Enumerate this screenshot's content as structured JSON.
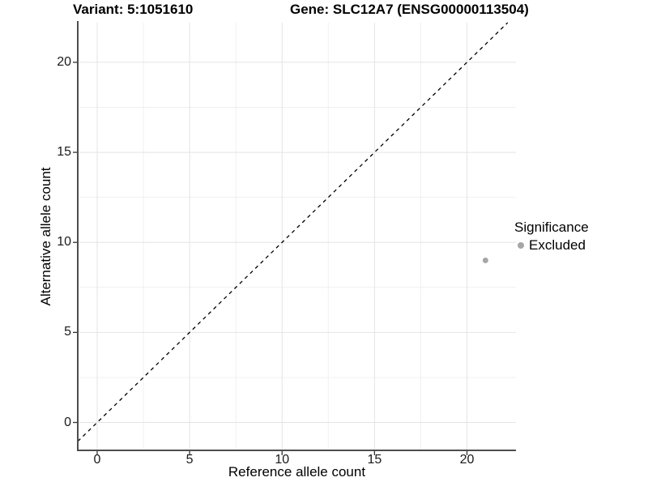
{
  "chart_data": {
    "type": "scatter",
    "title_left": "Variant: 5:1051610",
    "title_right": "Gene: SLC12A7 (ENSG00000113504)",
    "xlabel": "Reference allele count",
    "ylabel": "Alternative allele count",
    "xlim": [
      -1.05,
      22.65
    ],
    "ylim": [
      -1.55,
      22.2
    ],
    "x_ticks": [
      0,
      5,
      10,
      15,
      20
    ],
    "y_ticks": [
      0,
      5,
      10,
      15,
      20
    ],
    "x_minor": [
      2.5,
      7.5,
      12.5,
      17.5
    ],
    "y_minor": [
      2.5,
      7.5,
      12.5,
      17.5
    ],
    "grid": "major+minor",
    "reference_line": {
      "type": "abline",
      "slope": 1,
      "intercept": 0,
      "linetype": "dashed",
      "color": "#000000"
    },
    "series": [
      {
        "name": "Excluded",
        "color": "#a6a6a6",
        "points": [
          [
            21,
            9
          ]
        ]
      }
    ],
    "legend": {
      "title": "Significance",
      "position": "right",
      "items": [
        {
          "label": "Excluded",
          "color": "#a6a6a6"
        }
      ]
    }
  },
  "style_colors": {
    "axis_line": "#4d4d4d",
    "tick_mark": "#333333",
    "grid_major": "#e4e4e4",
    "grid_minor": "#f0f0f0",
    "background": "#ffffff"
  }
}
